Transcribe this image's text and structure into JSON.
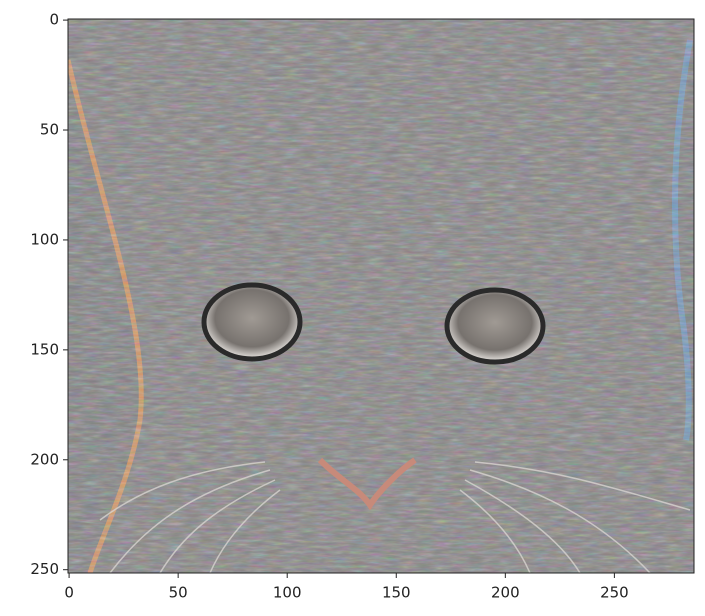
{
  "chart_data": {
    "type": "image",
    "xlim": [
      -0.5,
      286.5
    ],
    "ylim": [
      251.5,
      -0.5
    ],
    "xticks": [
      0,
      50,
      100,
      150,
      200,
      250
    ],
    "yticks": [
      0,
      50,
      100,
      150,
      200,
      250
    ]
  }
}
